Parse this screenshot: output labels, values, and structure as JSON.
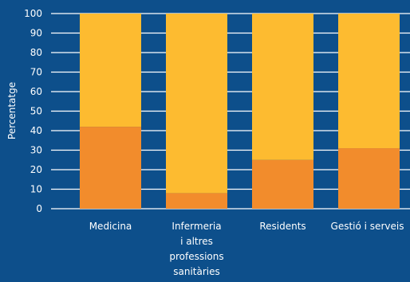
{
  "chart_data": {
    "type": "bar",
    "stacked": true,
    "categories": [
      [
        "Medicina"
      ],
      [
        "Infermeria",
        "i altres",
        "professions",
        "sanitàries"
      ],
      [
        "Residents"
      ],
      [
        "Gestió i serveis"
      ]
    ],
    "series": [
      {
        "values": [
          42,
          8,
          25,
          31
        ]
      },
      {
        "values": [
          58,
          92,
          75,
          69
        ]
      }
    ],
    "ylabel": "Percentatge",
    "ylim": [
      0,
      100
    ],
    "yticks": [
      0,
      10,
      20,
      30,
      40,
      50,
      60,
      70,
      80,
      90,
      100
    ],
    "grid": true,
    "colors": {
      "background": "#0d4f8b",
      "series_1": "#f28c2c",
      "series_2": "#fdbb30",
      "grid": "#ffffff",
      "text": "#ffffff"
    }
  }
}
